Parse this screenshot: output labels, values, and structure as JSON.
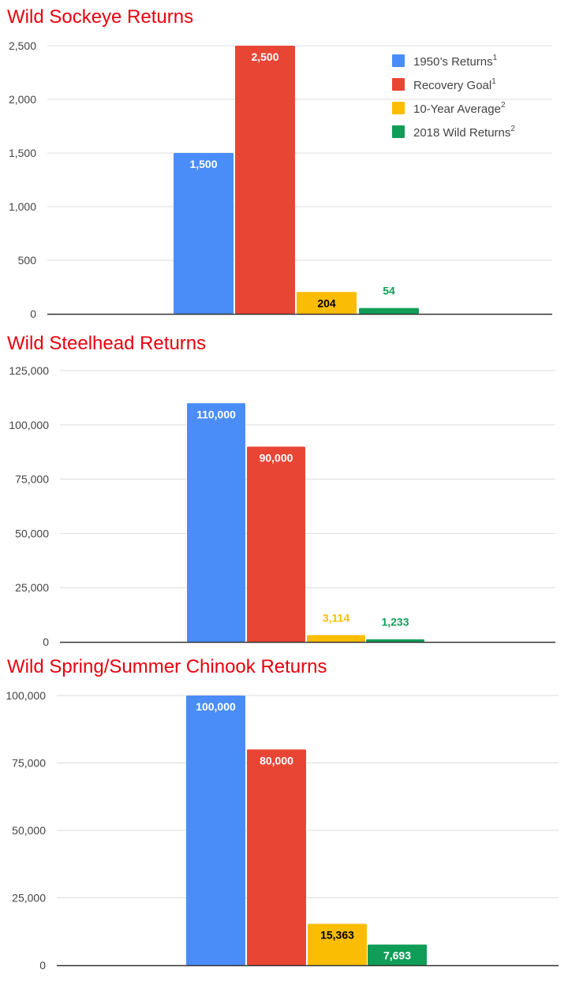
{
  "chart_data": [
    {
      "type": "bar",
      "title": "Wild Sockeye Returns",
      "xlabel": "",
      "ylabel": "",
      "ylim": [
        0,
        2500
      ],
      "yticks": [
        "0",
        "500",
        "1,000",
        "1,500",
        "2,000",
        "2,500"
      ],
      "grid": true,
      "legend_position": "top-right",
      "series": [
        {
          "name": "1950’s Returns",
          "name_sup": "1",
          "value": 1500,
          "label": "1,500",
          "color": "#4a8df8",
          "label_color": "#ffffff",
          "label_pos": "inside"
        },
        {
          "name": "Recovery Goal",
          "name_sup": "1",
          "value": 2500,
          "label": "2,500",
          "color": "#e94535",
          "label_color": "#ffffff",
          "label_pos": "inside"
        },
        {
          "name": "10-Year Average",
          "name_sup": "2",
          "value": 204,
          "label": "204",
          "color": "#fbbc04",
          "label_color": "#000000",
          "label_pos": "inside"
        },
        {
          "name": "2018 Wild Returns",
          "name_sup": "2",
          "value": 54,
          "label": "54",
          "color": "#109d58",
          "label_color": "#109d58",
          "label_pos": "above"
        }
      ]
    },
    {
      "type": "bar",
      "title": "Wild Steelhead Returns",
      "xlabel": "",
      "ylabel": "",
      "ylim": [
        0,
        125000
      ],
      "yticks": [
        "0",
        "25,000",
        "50,000",
        "75,000",
        "100,000",
        "125,000"
      ],
      "grid": true,
      "series": [
        {
          "value": 110000,
          "label": "110,000",
          "color": "#4a8df8",
          "label_color": "#ffffff",
          "label_pos": "inside"
        },
        {
          "value": 90000,
          "label": "90,000",
          "color": "#e94535",
          "label_color": "#ffffff",
          "label_pos": "inside"
        },
        {
          "value": 3114,
          "label": "3,114",
          "color": "#fbbc04",
          "label_color": "#fbbc04",
          "label_pos": "above"
        },
        {
          "value": 1233,
          "label": "1,233",
          "color": "#109d58",
          "label_color": "#109d58",
          "label_pos": "above"
        }
      ]
    },
    {
      "type": "bar",
      "title": "Wild Spring/Summer Chinook Returns",
      "xlabel": "",
      "ylabel": "",
      "ylim": [
        0,
        100000
      ],
      "yticks": [
        "0",
        "25,000",
        "50,000",
        "75,000",
        "100,000"
      ],
      "grid": true,
      "series": [
        {
          "value": 100000,
          "label": "100,000",
          "color": "#4a8df8",
          "label_color": "#ffffff",
          "label_pos": "inside"
        },
        {
          "value": 80000,
          "label": "80,000",
          "color": "#e94535",
          "label_color": "#ffffff",
          "label_pos": "inside"
        },
        {
          "value": 15363,
          "label": "15,363",
          "color": "#fbbc04",
          "label_color": "#000000",
          "label_pos": "inside"
        },
        {
          "value": 7693,
          "label": "7,693",
          "color": "#109d58",
          "label_color": "#ffffff",
          "label_pos": "inside"
        }
      ]
    }
  ]
}
